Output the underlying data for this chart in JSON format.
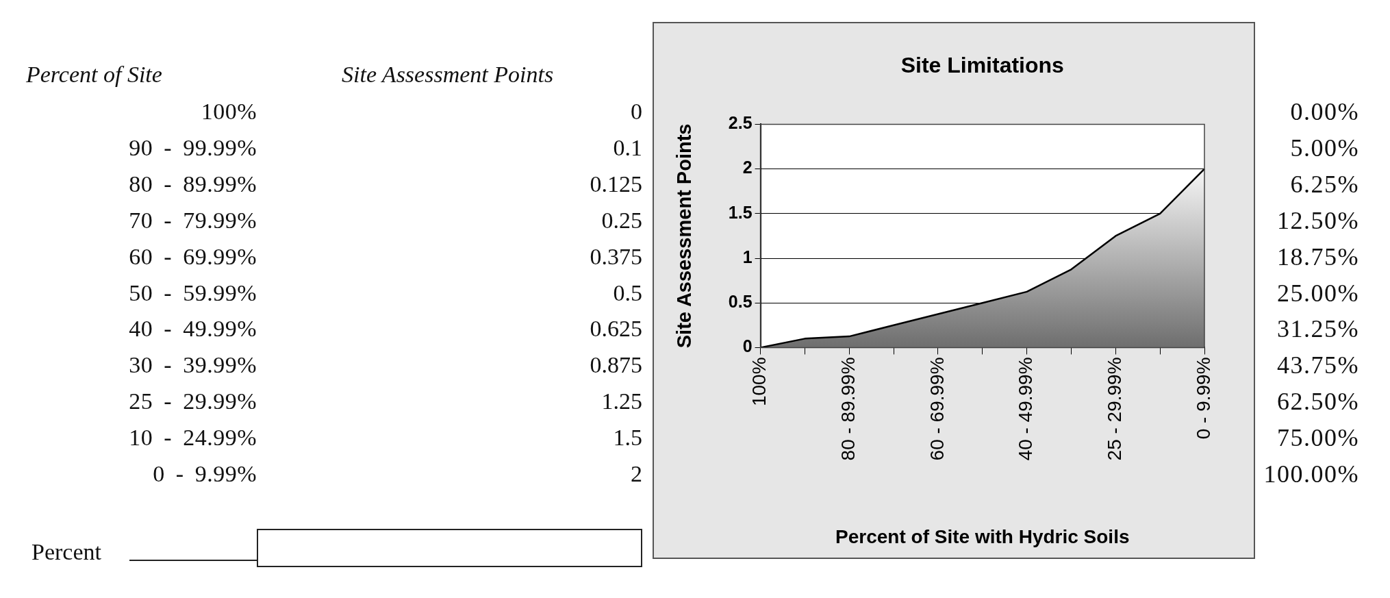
{
  "chart_data": [
    {
      "type": "other",
      "xlabel": "Percent of Site",
      "ylabel": "Site Assessment Points",
      "categories": [
        "100%",
        "90 - 99.99%",
        "80 - 89.99%",
        "70 - 79.99%",
        "60 - 69.99%",
        "50 - 59.99%",
        "40 - 49.99%",
        "30 - 39.99%",
        "25 - 29.99%",
        "10 - 24.99%",
        "0 - 9.99%"
      ],
      "values": [
        0,
        0.1,
        0.125,
        0.25,
        0.375,
        0.5,
        0.625,
        0.875,
        1.25,
        1.5,
        2
      ],
      "data_labels": true,
      "annotations": [
        "Percent"
      ]
    },
    {
      "type": "area",
      "title": "Site Limitations",
      "xlabel": "Percent of Site with Hydric Soils",
      "ylabel": "Site Assessment Points",
      "categories": [
        "100%",
        null,
        "80 - 89.99%",
        null,
        "60 - 69.99%",
        null,
        "40 - 49.99%",
        null,
        "25 - 29.99%",
        null,
        "0 - 9.99%"
      ],
      "values": [
        0,
        0.1,
        0.125,
        0.25,
        0.375,
        0.5,
        0.625,
        0.875,
        1.25,
        1.5,
        2
      ],
      "color": "#6e6e6e",
      "ylim": [
        0,
        2.5
      ],
      "yticks": [
        0,
        0.5,
        1,
        1.5,
        2,
        2.5
      ],
      "grid": "y"
    },
    {
      "type": "other",
      "values": [
        0,
        5,
        6.25,
        12.5,
        18.75,
        25,
        31.25,
        43.75,
        62.5,
        75,
        100
      ],
      "value_labels": [
        "0.00%",
        "5.00%",
        "6.25%",
        "12.50%",
        "18.75%",
        "25.00%",
        "31.25%",
        "43.75%",
        "62.50%",
        "75.00%",
        "100.00%"
      ]
    }
  ]
}
